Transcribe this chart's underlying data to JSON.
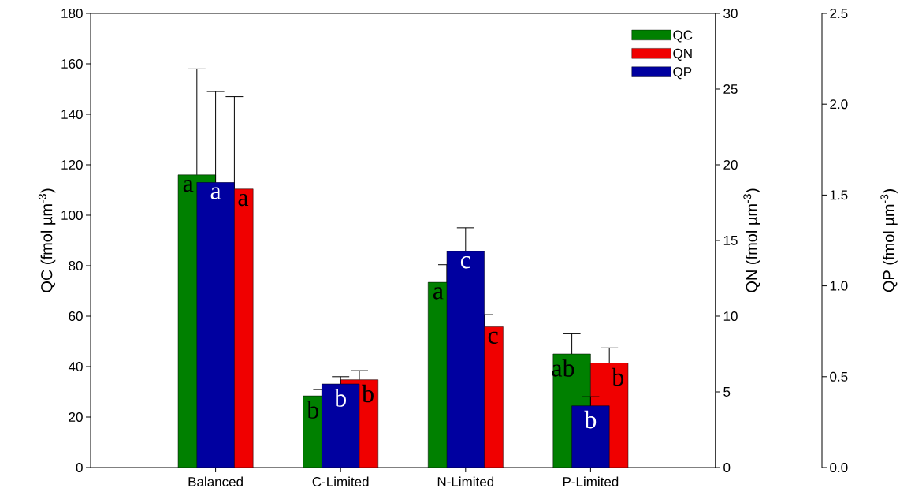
{
  "chart_data": {
    "type": "bar",
    "categories": [
      "Balanced",
      "C-Limited",
      "N-Limited",
      "P-Limited"
    ],
    "ylabel": "QC (fmol µm$^{-3}$)",
    "y2label": "QN (fmol µm$^{-3}$)",
    "y3label": "QP (fmol µm$^{-3}$)",
    "ylim": [
      0,
      180
    ],
    "yticks": [
      0,
      20,
      40,
      60,
      80,
      100,
      120,
      140,
      160,
      180
    ],
    "y2lim": [
      0,
      30
    ],
    "y2ticks": [
      0,
      5,
      10,
      15,
      20,
      25,
      30
    ],
    "y3lim": [
      0,
      2.5
    ],
    "y3ticks": [
      {
        "value": 0,
        "label": "0.0"
      },
      {
        "value": 0.5,
        "label": "0.5"
      },
      {
        "value": 1,
        "label": "1.0"
      },
      {
        "value": 1.5,
        "label": "1.5"
      },
      {
        "value": 2,
        "label": "2.0"
      },
      {
        "value": 2.5,
        "label": "2.5"
      }
    ],
    "series": [
      {
        "name": "QC",
        "color": "#008000",
        "axis": "y",
        "values": [
          116,
          28.4,
          73.4,
          45
        ],
        "errors": [
          42,
          2.5,
          7,
          8
        ]
      },
      {
        "name": "QN",
        "color": "#f00000",
        "axis": "y2",
        "values": [
          18.4,
          5.8,
          9.3,
          6.9
        ],
        "errors": [
          6.1,
          0.6,
          0.8,
          1.0
        ]
      },
      {
        "name": "QP",
        "color": "#0000a0",
        "axis": "y3",
        "values": [
          1.57,
          0.46,
          1.19,
          0.34
        ],
        "errors": [
          0.5,
          0.04,
          0.13,
          0.05
        ]
      }
    ],
    "annotations": [
      "a",
      "b",
      "a",
      "ab",
      "a",
      "b",
      "c",
      "b",
      "a",
      "b",
      "c",
      "b"
    ],
    "legend": "top right",
    "grid": false
  }
}
